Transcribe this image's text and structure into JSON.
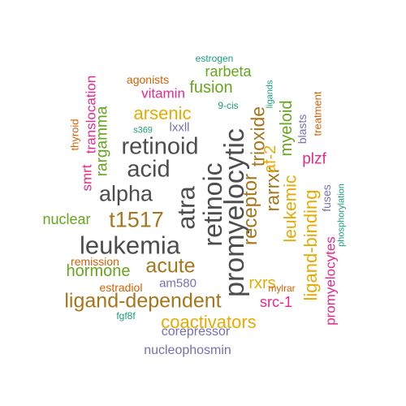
{
  "palette": {
    "gray": "#4d4d4d",
    "brown": "#a6761d",
    "gold": "#e6ab02",
    "green": "#66a61e",
    "teal": "#1b9e77",
    "orange": "#d95f02",
    "magenta": "#e7298a",
    "purple": "#7570b3"
  },
  "words": [
    {
      "text": "promyelocytic",
      "color": "gray",
      "size": 34,
      "rotated": true
    },
    {
      "text": "retinoic",
      "color": "gray",
      "size": 32,
      "rotated": true
    },
    {
      "text": "leukemia",
      "color": "gray",
      "size": 31,
      "rotated": false
    },
    {
      "text": "atra",
      "color": "gray",
      "size": 31,
      "rotated": true
    },
    {
      "text": "retinoid",
      "color": "gray",
      "size": 29,
      "rotated": false
    },
    {
      "text": "acid",
      "color": "gray",
      "size": 29,
      "rotated": false
    },
    {
      "text": "alpha",
      "color": "gray",
      "size": 27,
      "rotated": false
    },
    {
      "text": "t1517",
      "color": "brown",
      "size": 27,
      "rotated": false
    },
    {
      "text": "ligand-dependent",
      "color": "brown",
      "size": 25,
      "rotated": false
    },
    {
      "text": "acute",
      "color": "brown",
      "size": 25,
      "rotated": false
    },
    {
      "text": "receptor",
      "color": "brown",
      "size": 24,
      "rotated": true
    },
    {
      "text": "trioxide",
      "color": "brown",
      "size": 23,
      "rotated": true
    },
    {
      "text": "rarrxr",
      "color": "brown",
      "size": 23,
      "rotated": true
    },
    {
      "text": "arsenic",
      "color": "gold",
      "size": 22,
      "rotated": false
    },
    {
      "text": "coactivators",
      "color": "gold",
      "size": 22,
      "rotated": false
    },
    {
      "text": "ligand-binding",
      "color": "gold",
      "size": 22,
      "rotated": true
    },
    {
      "text": "leukemic",
      "color": "gold",
      "size": 21,
      "rotated": true
    },
    {
      "text": "af-2",
      "color": "gold",
      "size": 20,
      "rotated": true
    },
    {
      "text": "rxrs",
      "color": "gold",
      "size": 20,
      "rotated": false
    },
    {
      "text": "hormone",
      "color": "green",
      "size": 20,
      "rotated": false
    },
    {
      "text": "fusion",
      "color": "green",
      "size": 20,
      "rotated": false
    },
    {
      "text": "myeloid",
      "color": "green",
      "size": 20,
      "rotated": true
    },
    {
      "text": "rargamma",
      "color": "green",
      "size": 19,
      "rotated": true
    },
    {
      "text": "nuclear",
      "color": "green",
      "size": 18,
      "rotated": false
    },
    {
      "text": "rarbeta",
      "color": "green",
      "size": 18,
      "rotated": false
    },
    {
      "text": "plzf",
      "color": "magenta",
      "size": 19,
      "rotated": false
    },
    {
      "text": "src-1",
      "color": "magenta",
      "size": 18,
      "rotated": false
    },
    {
      "text": "promyelocytes",
      "color": "magenta",
      "size": 17,
      "rotated": true
    },
    {
      "text": "translocation",
      "color": "magenta",
      "size": 17,
      "rotated": true
    },
    {
      "text": "vitamin",
      "color": "magenta",
      "size": 17,
      "rotated": false
    },
    {
      "text": "smrt",
      "color": "magenta",
      "size": 17,
      "rotated": true
    },
    {
      "text": "corepressor",
      "color": "purple",
      "size": 16,
      "rotated": false
    },
    {
      "text": "nucleophosmin",
      "color": "purple",
      "size": 16,
      "rotated": false
    },
    {
      "text": "am580",
      "color": "purple",
      "size": 15,
      "rotated": false
    },
    {
      "text": "lxxll",
      "color": "purple",
      "size": 15,
      "rotated": false
    },
    {
      "text": "blasts",
      "color": "purple",
      "size": 14,
      "rotated": true
    },
    {
      "text": "fuses",
      "color": "purple",
      "size": 14,
      "rotated": true
    },
    {
      "text": "agonists",
      "color": "orange",
      "size": 14,
      "rotated": false
    },
    {
      "text": "remission",
      "color": "orange",
      "size": 14,
      "rotated": false
    },
    {
      "text": "estradiol",
      "color": "orange",
      "size": 14,
      "rotated": false
    },
    {
      "text": "mylrar",
      "color": "orange",
      "size": 12,
      "rotated": false
    },
    {
      "text": "treatment",
      "color": "orange",
      "size": 13,
      "rotated": true
    },
    {
      "text": "thyroid",
      "color": "orange",
      "size": 13,
      "rotated": true
    },
    {
      "text": "estrogen",
      "color": "teal",
      "size": 12,
      "rotated": false
    },
    {
      "text": "9-cis",
      "color": "teal",
      "size": 12,
      "rotated": false
    },
    {
      "text": "fgf8f",
      "color": "teal",
      "size": 12,
      "rotated": false
    },
    {
      "text": "s369",
      "color": "teal",
      "size": 11,
      "rotated": false
    },
    {
      "text": "ligands",
      "color": "teal",
      "size": 11,
      "rotated": true
    },
    {
      "text": "phosphorylation",
      "color": "teal",
      "size": 11,
      "rotated": true
    }
  ]
}
